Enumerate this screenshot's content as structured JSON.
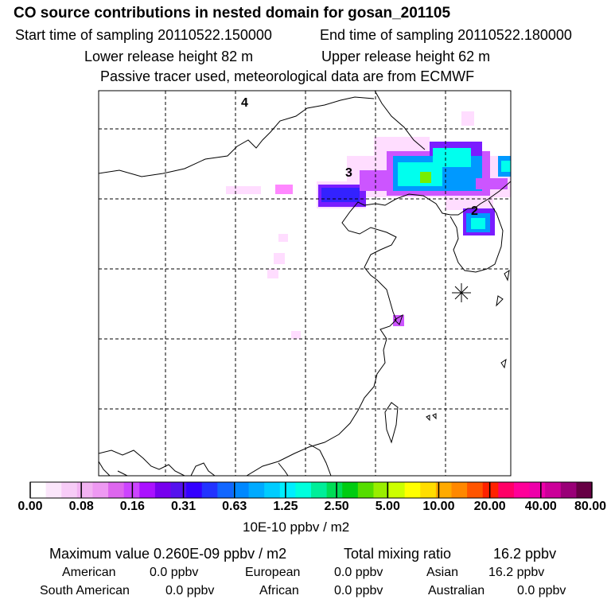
{
  "header": {
    "title": "CO  source contributions in nested domain for gosan_201105",
    "start_time": "Start time of sampling 20110522.150000",
    "end_time": "End time of sampling 20110522.180000",
    "lower_height": "Lower release height   82 m",
    "upper_height": "Upper release height   62 m",
    "note": "Passive tracer used, meteorological data are from ECMWF"
  },
  "map": {
    "region_labels": [
      "4",
      "3",
      "2"
    ],
    "site_marker": "gosan-site",
    "gridline_color": "#000000",
    "plume_colors": [
      "#ffddff",
      "#ff88ff",
      "#cc55ff",
      "#7a1cff",
      "#3322ff",
      "#0099ff",
      "#00ffee",
      "#77ee00"
    ]
  },
  "colorbar": {
    "colors": [
      "#ffffff",
      "#fbe6fb",
      "#f7ccf7",
      "#f2b3f2",
      "#ee99f2",
      "#dd66ee",
      "#cc44ff",
      "#aa11ff",
      "#7700ee",
      "#5511ee",
      "#3300ff",
      "#2233ff",
      "#1166ff",
      "#0088ff",
      "#00aaff",
      "#00ccff",
      "#00eeff",
      "#00ffdd",
      "#00ee99",
      "#00dd55",
      "#00cc11",
      "#55dd00",
      "#99ee00",
      "#ccff00",
      "#ffff00",
      "#ffdd00",
      "#ffaa00",
      "#ff8800",
      "#ff5500",
      "#ff2200",
      "#ff0066",
      "#ff0099",
      "#ee00aa",
      "#cc0099",
      "#990077",
      "#660044"
    ],
    "ticks": [
      "0.00",
      "0.08",
      "0.16",
      "0.31",
      "0.63",
      "1.25",
      "2.50",
      "5.00",
      "10.00",
      "20.00",
      "40.00",
      "80.00"
    ],
    "units": "10E-10 ppbv / m2"
  },
  "stats": {
    "max_label": "Maximum value  0.260E-09 ppbv / m2",
    "total_label": "Total mixing ratio",
    "total_value": "16.2 ppbv",
    "regions": [
      {
        "name": "American",
        "value": "0.0 ppbv"
      },
      {
        "name": "European",
        "value": "0.0 ppbv"
      },
      {
        "name": "Asian",
        "value": "16.2 ppbv"
      },
      {
        "name": "South American",
        "value": "0.0 ppbv"
      },
      {
        "name": "African",
        "value": "0.0 ppbv"
      },
      {
        "name": "Australian",
        "value": "0.0 ppbv"
      }
    ]
  }
}
